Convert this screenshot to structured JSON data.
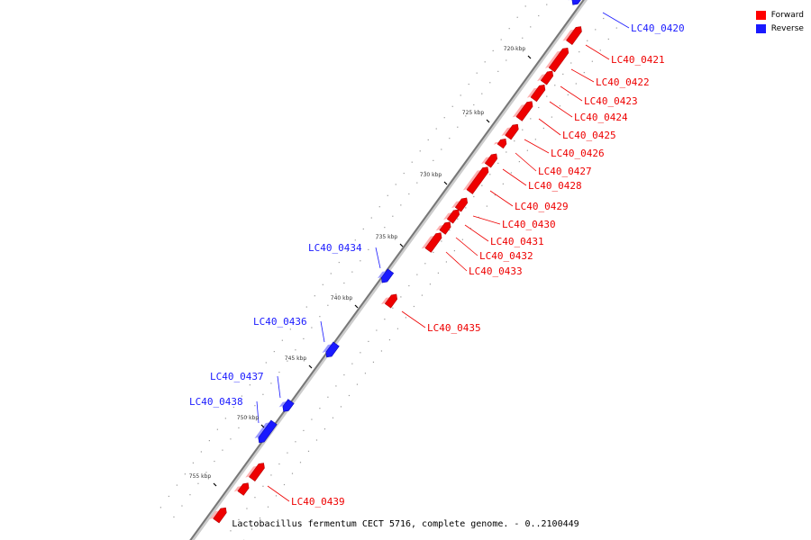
{
  "caption": "Lactobacillus fermentum CECT 5716, complete genome. - 0..2100449",
  "legend": [
    {
      "label": "Forward",
      "color": "#ff0000"
    },
    {
      "label": "Reverse",
      "color": "#1a1aff"
    }
  ],
  "colors": {
    "forward": "#ee0000",
    "reverse": "#1a1aff",
    "backbone": "#777777"
  },
  "scale_labels": [
    "720 kbp",
    "725 kbp",
    "730 kbp",
    "735 kbp",
    "740 kbp",
    "745 kbp",
    "750 kbp",
    "755 kbp"
  ],
  "genes": [
    {
      "id": "LC40_0420",
      "strand": "reverse"
    },
    {
      "id": "LC40_0421",
      "strand": "forward"
    },
    {
      "id": "LC40_0422",
      "strand": "forward"
    },
    {
      "id": "LC40_0423",
      "strand": "forward"
    },
    {
      "id": "LC40_0424",
      "strand": "forward"
    },
    {
      "id": "LC40_0425",
      "strand": "forward"
    },
    {
      "id": "LC40_0426",
      "strand": "forward"
    },
    {
      "id": "LC40_0427",
      "strand": "forward"
    },
    {
      "id": "LC40_0428",
      "strand": "forward"
    },
    {
      "id": "LC40_0429",
      "strand": "forward"
    },
    {
      "id": "LC40_0430",
      "strand": "forward"
    },
    {
      "id": "LC40_0431",
      "strand": "forward"
    },
    {
      "id": "LC40_0432",
      "strand": "forward"
    },
    {
      "id": "LC40_0433",
      "strand": "forward"
    },
    {
      "id": "LC40_0434",
      "strand": "reverse"
    },
    {
      "id": "LC40_0435",
      "strand": "forward"
    },
    {
      "id": "LC40_0436",
      "strand": "reverse"
    },
    {
      "id": "LC40_0437",
      "strand": "reverse"
    },
    {
      "id": "LC40_0438",
      "strand": "reverse"
    },
    {
      "id": "LC40_0439",
      "strand": "forward"
    }
  ]
}
